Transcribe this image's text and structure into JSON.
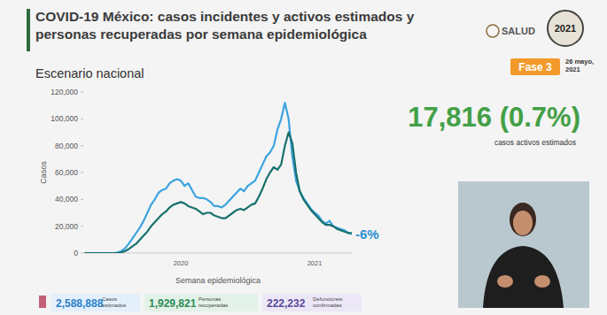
{
  "header": {
    "logo": "SALUD",
    "logo_year": "2021",
    "phase": "Fase 3",
    "date": "26 mayo, 2021"
  },
  "chart_data": {
    "type": "line",
    "title": "COVID-19 México: casos incidentes y activos estimados y personas recuperadas por semana epidemiológica",
    "subtitle": "Escenario nacional",
    "x_label": "Semana epidemiológica",
    "y_label": "Casos",
    "categories": [
      null,
      null,
      null,
      null,
      null,
      null,
      null,
      null,
      null,
      null,
      null,
      null,
      null,
      null,
      null,
      null,
      null,
      null,
      null,
      null,
      null,
      null,
      null,
      null,
      null,
      null,
      "2020",
      null,
      null,
      null,
      null,
      null,
      null,
      null,
      null,
      null,
      null,
      null,
      null,
      null,
      null,
      null,
      null,
      null,
      null,
      null,
      null,
      null,
      null,
      null,
      null,
      null,
      null,
      null,
      null,
      null,
      null,
      null,
      null,
      null,
      null,
      null,
      "2021",
      null,
      null,
      null,
      null,
      null,
      null,
      null,
      null,
      null,
      null
    ],
    "series": [
      {
        "color": "#3ba3e0",
        "values": [
          0,
          0,
          0,
          0,
          0,
          0,
          0,
          0,
          0,
          500,
          1500,
          3500,
          7000,
          11000,
          15000,
          19000,
          24000,
          30000,
          36000,
          40000,
          45000,
          47000,
          48000,
          52000,
          54000,
          55000,
          54000,
          50000,
          52000,
          47000,
          42000,
          41000,
          41000,
          40000,
          38000,
          35000,
          35000,
          34000,
          36000,
          39000,
          42000,
          45000,
          48000,
          46000,
          50000,
          52000,
          54000,
          60000,
          66000,
          72000,
          75000,
          80000,
          92000,
          100000,
          112000,
          100000,
          72000,
          54000,
          46000,
          41000,
          37000,
          33000,
          30000,
          28000,
          24000,
          22000,
          24000,
          20000,
          19000,
          18000,
          17000,
          15000,
          14000
        ]
      },
      {
        "color": "#17706c",
        "values": [
          0,
          0,
          0,
          0,
          0,
          0,
          0,
          0,
          0,
          0,
          500,
          1500,
          3000,
          5000,
          7000,
          10000,
          13000,
          16000,
          20000,
          23000,
          26000,
          29000,
          31000,
          34000,
          36000,
          37000,
          38000,
          37000,
          35000,
          34000,
          33000,
          31000,
          29000,
          30000,
          30000,
          28000,
          27000,
          26000,
          26000,
          28000,
          30000,
          32000,
          33000,
          32000,
          34000,
          36000,
          37000,
          42000,
          48000,
          55000,
          60000,
          64000,
          62000,
          66000,
          80000,
          90000,
          82000,
          60000,
          46000,
          40000,
          36000,
          32000,
          29000,
          26000,
          23000,
          21000,
          21000,
          20000,
          18000,
          17000,
          16000,
          15000,
          15000
        ]
      }
    ],
    "ylim": [
      0,
      120000
    ],
    "yticks": [
      0,
      {
        "value": 20000,
        "label": "20,000"
      },
      {
        "value": 40000,
        "label": "40,000"
      },
      {
        "value": 60000,
        "label": "60,000"
      },
      {
        "value": 80000,
        "label": "80,000"
      },
      {
        "value": 100000,
        "label": "100,000"
      },
      {
        "value": 120000,
        "label": "120,000"
      }
    ],
    "grid": false,
    "annotations": [
      "-6%"
    ]
  },
  "highlight": {
    "value": "17,816 (0.7%)",
    "label": "casos activos estimados"
  },
  "stats": [
    {
      "value": "2,588,888",
      "label": "Casos estimados"
    },
    {
      "value": "1,929,821",
      "label": "Personas recuperadas"
    },
    {
      "value": "222,232",
      "label": "Defunciones confirmadas"
    }
  ]
}
